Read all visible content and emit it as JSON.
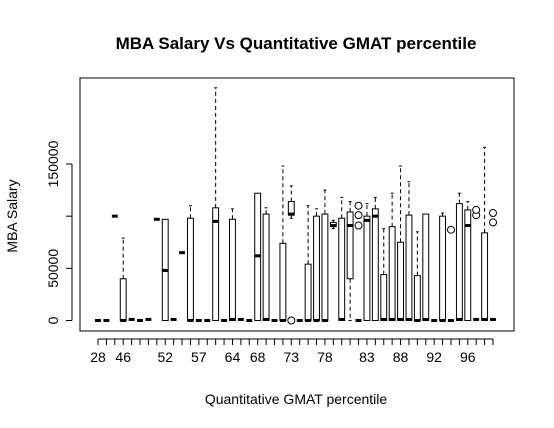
{
  "chart_data": {
    "type": "boxplot",
    "title": "MBA Salary Vs Quantitative GMAT percentile",
    "xlabel": "Quantitative GMAT percentile",
    "ylabel": "MBA Salary",
    "ylim": [
      0,
      220000
    ],
    "yticks": [
      0,
      50000,
      150000
    ],
    "xtick_labels_shown": [
      "28",
      "46",
      "52",
      "57",
      "64",
      "68",
      "73",
      "78",
      "83",
      "88",
      "92",
      "96"
    ],
    "grid": false,
    "box_width_fraction": 0.7,
    "boxes": [
      {
        "x": "28",
        "stats": [
          0,
          0,
          0,
          0,
          0
        ],
        "outliers": []
      },
      {
        "x": "",
        "stats": [
          0,
          0,
          0,
          0,
          0
        ],
        "outliers": []
      },
      {
        "x": "",
        "stats": [
          100000,
          100000,
          100000,
          100000,
          100000
        ],
        "outliers": []
      },
      {
        "x": "46",
        "stats": [
          0,
          0,
          0,
          40000,
          79000
        ],
        "outliers": []
      },
      {
        "x": "",
        "stats": [
          1000,
          1000,
          1000,
          1000,
          1000
        ],
        "outliers": []
      },
      {
        "x": "",
        "stats": [
          0,
          0,
          0,
          0,
          0
        ],
        "outliers": []
      },
      {
        "x": "",
        "stats": [
          1000,
          1000,
          1000,
          1000,
          1000
        ],
        "outliers": []
      },
      {
        "x": "",
        "stats": [
          97000,
          97000,
          97000,
          97000,
          97000
        ],
        "outliers": []
      },
      {
        "x": "52",
        "stats": [
          0,
          0,
          48000,
          97000,
          97000
        ],
        "outliers": []
      },
      {
        "x": "",
        "stats": [
          1000,
          1000,
          1000,
          1000,
          1000
        ],
        "outliers": []
      },
      {
        "x": "",
        "stats": [
          65000,
          65000,
          65000,
          65000,
          65000
        ],
        "outliers": []
      },
      {
        "x": "",
        "stats": [
          0,
          0,
          0,
          98000,
          110000
        ],
        "outliers": []
      },
      {
        "x": "57",
        "stats": [
          0,
          0,
          0,
          0,
          0
        ],
        "outliers": []
      },
      {
        "x": "",
        "stats": [
          0,
          0,
          0,
          0,
          0
        ],
        "outliers": []
      },
      {
        "x": "",
        "stats": [
          0,
          0,
          95000,
          108000,
          223000
        ],
        "outliers": []
      },
      {
        "x": "",
        "stats": [
          0,
          0,
          0,
          0,
          0
        ],
        "outliers": []
      },
      {
        "x": "64",
        "stats": [
          0,
          0,
          1000,
          97000,
          107000
        ],
        "outliers": []
      },
      {
        "x": "",
        "stats": [
          1000,
          1000,
          1000,
          1000,
          1000
        ],
        "outliers": []
      },
      {
        "x": "",
        "stats": [
          0,
          0,
          0,
          0,
          0
        ],
        "outliers": []
      },
      {
        "x": "68",
        "stats": [
          0,
          0,
          62000,
          122000,
          122000
        ],
        "outliers": []
      },
      {
        "x": "",
        "stats": [
          0,
          0,
          1000,
          102000,
          108000
        ],
        "outliers": []
      },
      {
        "x": "",
        "stats": [
          0,
          0,
          0,
          0,
          0
        ],
        "outliers": []
      },
      {
        "x": "",
        "stats": [
          0,
          0,
          0,
          74000,
          148000
        ],
        "outliers": []
      },
      {
        "x": "73",
        "stats": [
          98000,
          101000,
          102000,
          114000,
          129000
        ],
        "outliers": [
          0
        ]
      },
      {
        "x": "",
        "stats": [
          0,
          0,
          0,
          0,
          0
        ],
        "outliers": []
      },
      {
        "x": "",
        "stats": [
          0,
          0,
          0,
          54000,
          110000
        ],
        "outliers": []
      },
      {
        "x": "",
        "stats": [
          0,
          0,
          0,
          100000,
          107000
        ],
        "outliers": []
      },
      {
        "x": "78",
        "stats": [
          0,
          0,
          0,
          102000,
          125000
        ],
        "outliers": []
      },
      {
        "x": "",
        "stats": [
          88000,
          90000,
          91000,
          94000,
          96000
        ],
        "outliers": []
      },
      {
        "x": "",
        "stats": [
          0,
          0,
          1000,
          98000,
          118000
        ],
        "outliers": []
      },
      {
        "x": "",
        "stats": [
          0,
          40000,
          91000,
          104000,
          114000
        ],
        "outliers": []
      },
      {
        "x": "",
        "stats": [
          0,
          0,
          0,
          0,
          0
        ],
        "outliers": [
          91000,
          101000,
          110000
        ]
      },
      {
        "x": "83",
        "stats": [
          0,
          0,
          96000,
          100000,
          112000
        ],
        "outliers": []
      },
      {
        "x": "",
        "stats": [
          0,
          0,
          100000,
          107000,
          118000
        ],
        "outliers": []
      },
      {
        "x": "",
        "stats": [
          0,
          0,
          1000,
          44000,
          88000
        ],
        "outliers": []
      },
      {
        "x": "",
        "stats": [
          0,
          0,
          1000,
          90000,
          122000
        ],
        "outliers": []
      },
      {
        "x": "88",
        "stats": [
          0,
          0,
          1000,
          75000,
          148000
        ],
        "outliers": []
      },
      {
        "x": "",
        "stats": [
          0,
          0,
          1000,
          101000,
          133000
        ],
        "outliers": []
      },
      {
        "x": "",
        "stats": [
          0,
          0,
          0,
          43000,
          85000
        ],
        "outliers": []
      },
      {
        "x": "",
        "stats": [
          0,
          0,
          1000,
          102000,
          102000
        ],
        "outliers": []
      },
      {
        "x": "92",
        "stats": [
          0,
          0,
          0,
          0,
          0
        ],
        "outliers": []
      },
      {
        "x": "",
        "stats": [
          0,
          0,
          0,
          100000,
          103000
        ],
        "outliers": []
      },
      {
        "x": "",
        "stats": [
          0,
          0,
          0,
          0,
          0
        ],
        "outliers": [
          87000
        ]
      },
      {
        "x": "",
        "stats": [
          0,
          0,
          1000,
          112000,
          122000
        ],
        "outliers": []
      },
      {
        "x": "96",
        "stats": [
          0,
          0,
          91000,
          106000,
          114000
        ],
        "outliers": []
      },
      {
        "x": "",
        "stats": [
          1000,
          1000,
          1000,
          1000,
          1000
        ],
        "outliers": [
          101000,
          106000
        ]
      },
      {
        "x": "",
        "stats": [
          0,
          0,
          1000,
          84000,
          166000
        ],
        "outliers": []
      },
      {
        "x": "",
        "stats": [
          1000,
          1000,
          1000,
          1000,
          1000
        ],
        "outliers": [
          94000,
          103000
        ]
      }
    ]
  }
}
